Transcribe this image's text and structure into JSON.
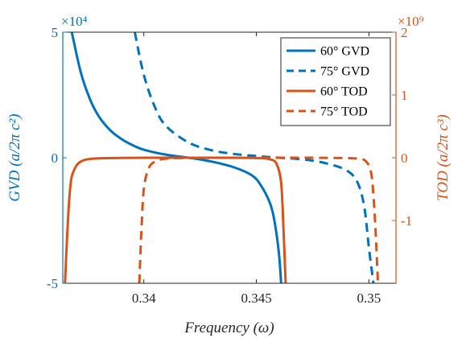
{
  "chart_data": {
    "type": "line",
    "xlabel": "Frequency (ω)",
    "ylabel_left": "GVD (a/2π c²)",
    "ylabel_right": "TOD (a/2π c³)",
    "xlim": [
      0.3364,
      0.3512
    ],
    "ylim_left": [
      -50000,
      50000
    ],
    "ylim_right": [
      -2000000000,
      2000000000
    ],
    "x_ticks": [
      0.34,
      0.345,
      0.35
    ],
    "x_tick_labels": [
      "0.34",
      "0.345",
      "0.35"
    ],
    "y_left_ticks": [
      -50000,
      0,
      50000
    ],
    "y_left_tick_labels": [
      "-5",
      "0",
      "5"
    ],
    "y_left_exponent": "×10⁴",
    "y_right_ticks": [
      -1000000000,
      0,
      1000000000,
      2000000000
    ],
    "y_right_tick_labels": [
      "-1",
      "0",
      "1",
      "2"
    ],
    "y_right_exponent": "×10⁹",
    "grid": false,
    "legend_position": "top-right",
    "colors": {
      "gvd": "#0072BD",
      "tod": "#D95319"
    },
    "series": [
      {
        "name": "60° GVD",
        "axis": "left",
        "style": "solid",
        "color": "#0072BD",
        "x": [
          0.3368,
          0.3372,
          0.3376,
          0.338,
          0.3385,
          0.339,
          0.3395,
          0.34,
          0.341,
          0.342,
          0.343,
          0.344,
          0.3448,
          0.3452,
          0.3456,
          0.3458,
          0.346,
          0.3461
        ],
        "y": [
          50000,
          34000,
          23500,
          16500,
          11000,
          7500,
          5000,
          3200,
          1200,
          0,
          -1500,
          -3800,
          -7000,
          -11000,
          -18000,
          -25000,
          -38000,
          -50000
        ]
      },
      {
        "name": "75° GVD",
        "axis": "left",
        "style": "dashed",
        "color": "#0072BD",
        "x": [
          0.3396,
          0.34,
          0.3405,
          0.341,
          0.342,
          0.343,
          0.344,
          0.345,
          0.346,
          0.347,
          0.348,
          0.349,
          0.3495,
          0.3498,
          0.35,
          0.3502
        ],
        "y": [
          50000,
          33000,
          20000,
          12500,
          6000,
          3000,
          1500,
          700,
          0,
          -600,
          -2000,
          -5000,
          -10000,
          -20000,
          -36000,
          -50000
        ]
      },
      {
        "name": "60° TOD",
        "axis": "right",
        "style": "solid",
        "color": "#D95319",
        "x": [
          0.3365,
          0.3366,
          0.3367,
          0.3368,
          0.337,
          0.3372,
          0.3375,
          0.338,
          0.339,
          0.341,
          0.343,
          0.345,
          0.3456,
          0.3459,
          0.3461,
          0.3462,
          0.3463
        ],
        "y": [
          -2000000000,
          -1200000000,
          -600000000,
          -300000000,
          -130000000,
          -60000000,
          -25000000,
          -10000000,
          -3000000,
          0,
          0,
          -5000000,
          -25000000,
          -100000000,
          -400000000,
          -1100000000,
          -2000000000
        ]
      },
      {
        "name": "75° TOD",
        "axis": "right",
        "style": "dashed",
        "color": "#D95319",
        "x": [
          0.3398,
          0.3399,
          0.34,
          0.3402,
          0.3405,
          0.341,
          0.342,
          0.344,
          0.346,
          0.348,
          0.3495,
          0.3499,
          0.3501,
          0.3502,
          0.3503,
          0.3504
        ],
        "y": [
          -2000000000,
          -1100000000,
          -500000000,
          -180000000,
          -60000000,
          -15000000,
          -3000000,
          0,
          0,
          -2000000,
          -15000000,
          -70000000,
          -250000000,
          -600000000,
          -1200000000,
          -2000000000
        ]
      }
    ]
  }
}
